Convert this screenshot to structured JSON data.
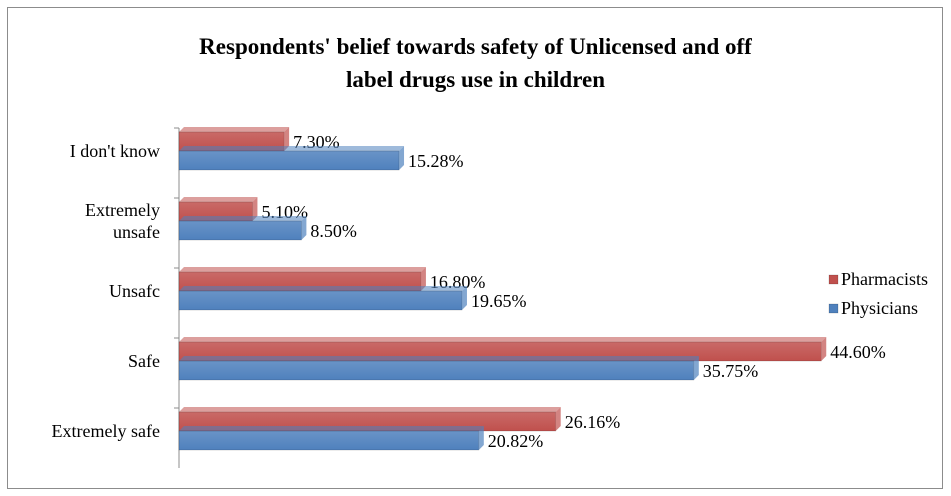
{
  "chart_data": {
    "type": "bar",
    "orientation": "horizontal",
    "title_lines": [
      "Respondents' belief towards safety of Unlicensed and off",
      "label drugs use in children"
    ],
    "categories": [
      [
        "I don't know"
      ],
      [
        "Extremely",
        "unsafe"
      ],
      [
        "Unsafc"
      ],
      [
        "Safe"
      ],
      [
        "Extremely safe"
      ]
    ],
    "series": [
      {
        "name": "Pharmacists",
        "color": "#c0504d",
        "values": [
          7.3,
          5.1,
          16.8,
          44.6,
          26.16
        ],
        "labels": [
          "7.30%",
          "5.10%",
          "16.80%",
          "44.60%",
          "26.16%"
        ]
      },
      {
        "name": "Physicians",
        "color": "#4f81bd",
        "values": [
          15.28,
          8.5,
          19.65,
          35.75,
          20.82
        ],
        "labels": [
          "15.28%",
          "8.50%",
          "19.65%",
          "35.75%",
          "20.82%"
        ]
      }
    ],
    "xlim": [
      0,
      50
    ],
    "grid": false,
    "legend_position": "right"
  }
}
